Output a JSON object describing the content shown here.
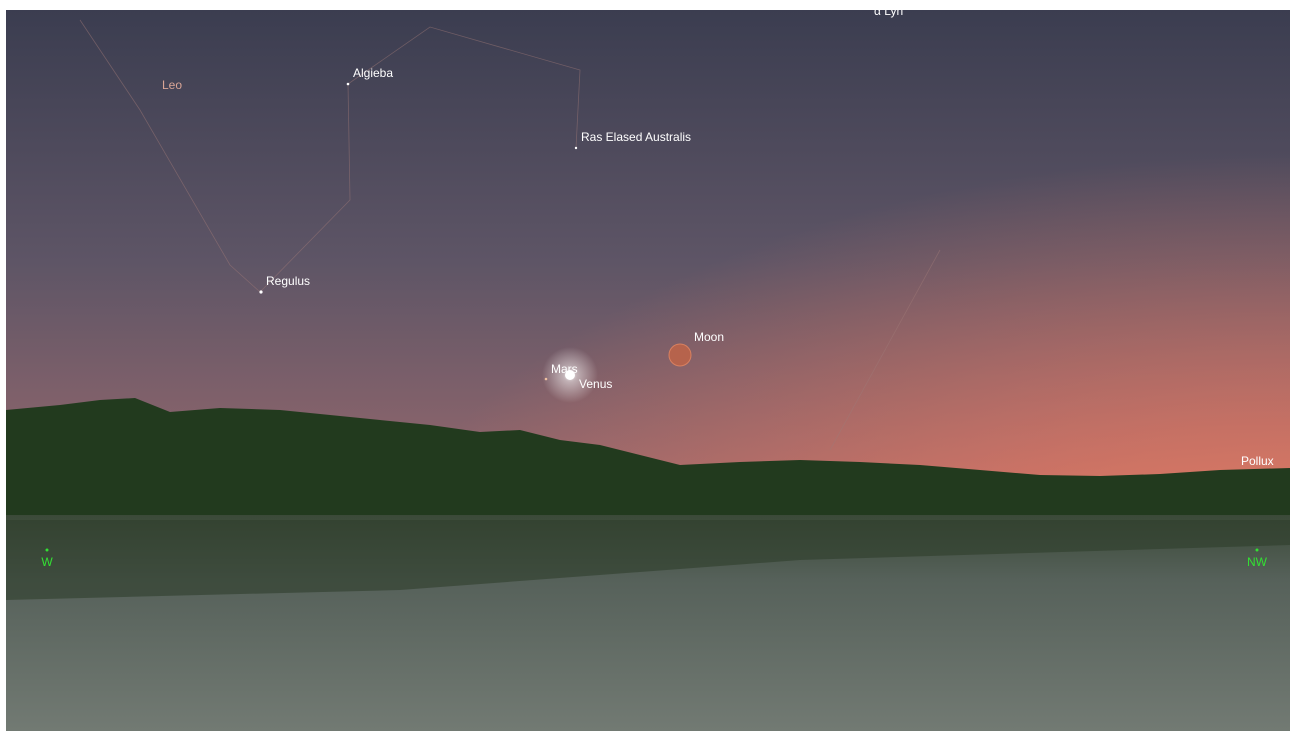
{
  "constellation": "Leo",
  "stars": [
    "α Lyn",
    "Algieba",
    "Ras Elased Australis",
    "Regulus",
    "Pollux"
  ],
  "planets": [
    "Moon",
    "Mars",
    "Venus"
  ],
  "compass": [
    "W",
    "NW"
  ]
}
